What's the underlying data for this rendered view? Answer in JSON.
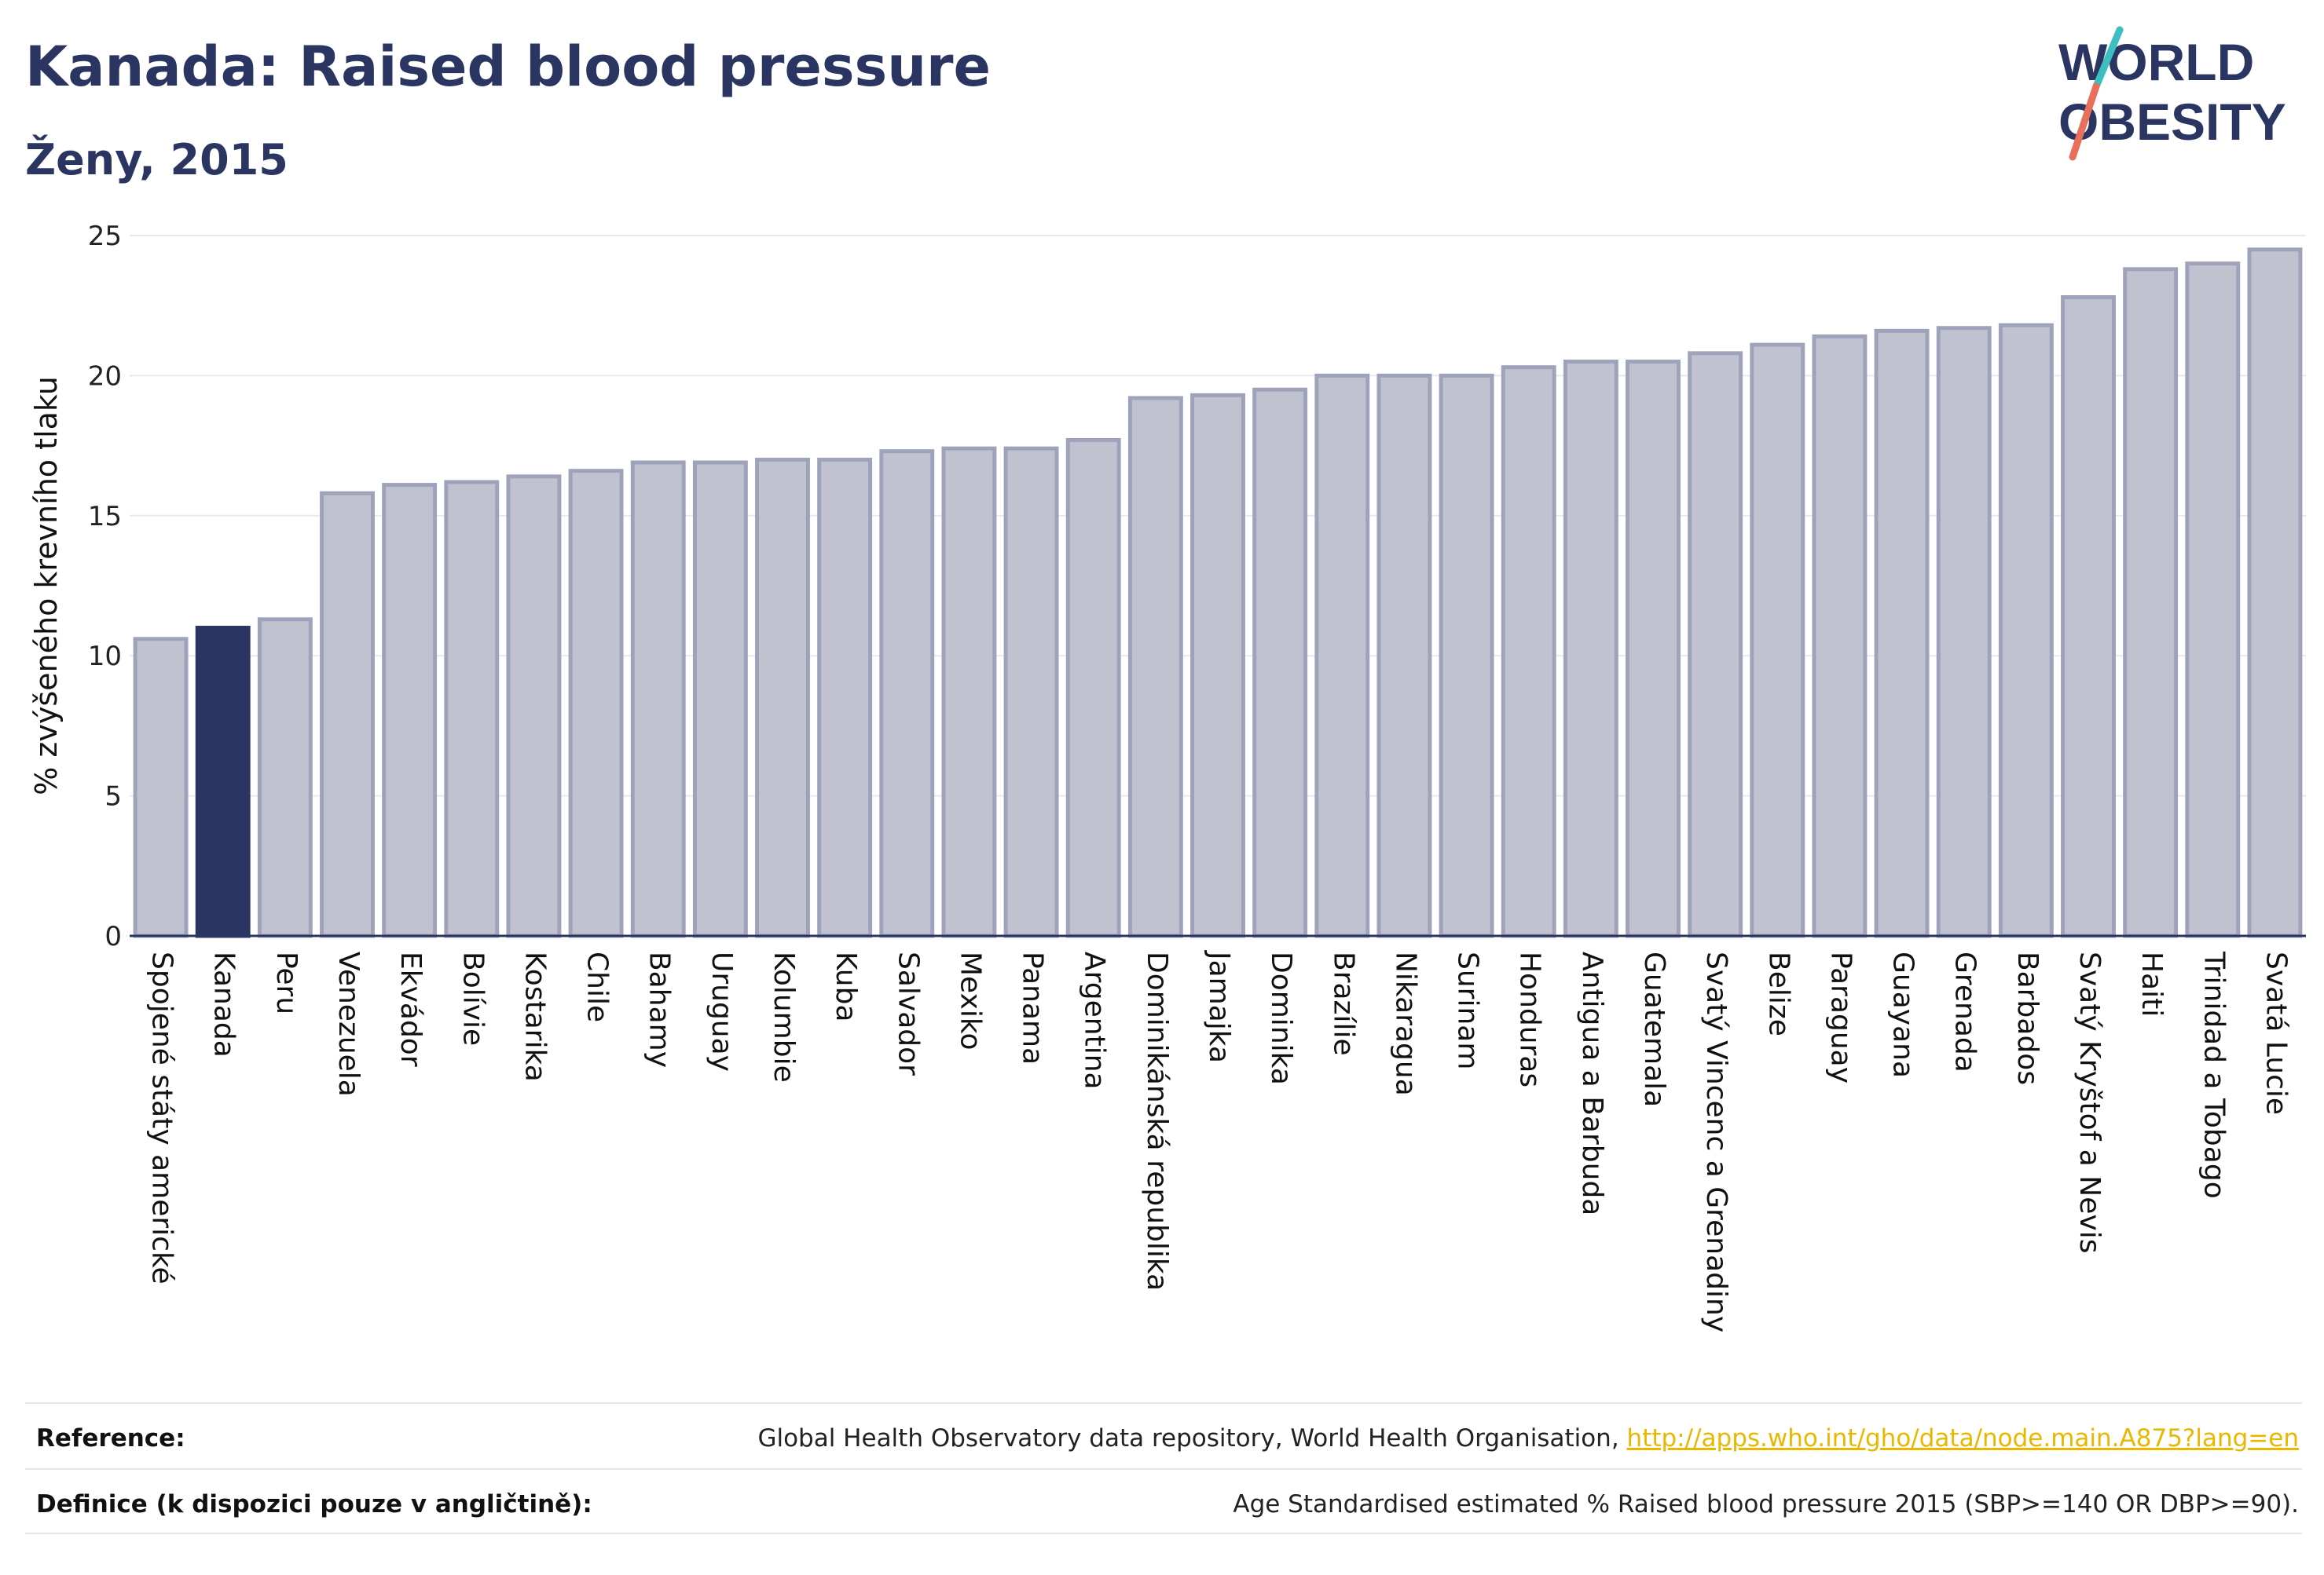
{
  "title": "Kanada: Raised blood pressure",
  "subtitle": "Ženy, 2015",
  "logo": {
    "line1": "WORLD",
    "line2": "OBESITY",
    "accent_teal": "#3bbfbf",
    "accent_red": "#e8705a"
  },
  "colors": {
    "bar": "#c0c3cf",
    "bar_stroke": "#9ea3bb",
    "highlight": "#2b3561",
    "grid": "#e9e9ee",
    "axis": "#2b3561"
  },
  "chart_data": {
    "type": "bar",
    "ylabel": "% zvýšeného krevního tlaku",
    "ylim": [
      0,
      25
    ],
    "yticks": [
      0,
      5,
      10,
      15,
      20,
      25
    ],
    "grid": true,
    "highlight": "Kanada",
    "categories": [
      "Spojené státy americké",
      "Kanada",
      "Peru",
      "Venezuela",
      "Ekvádor",
      "Bolívie",
      "Kostarika",
      "Chile",
      "Bahamy",
      "Uruguay",
      "Kolumbie",
      "Kuba",
      "Salvador",
      "Mexiko",
      "Panama",
      "Argentina",
      "Dominikánská republika",
      "Jamajka",
      "Dominika",
      "Brazílie",
      "Nikaragua",
      "Surinam",
      "Honduras",
      "Antigua a Barbuda",
      "Guatemala",
      "Svatý Vincenc a Grenadiny",
      "Belize",
      "Paraguay",
      "Guayana",
      "Grenada",
      "Barbados",
      "Svatý Kryštof a Nevis",
      "Haiti",
      "Trinidad a Tobago",
      "Svatá Lucie"
    ],
    "values": [
      10.6,
      11.0,
      11.3,
      15.8,
      16.1,
      16.2,
      16.4,
      16.6,
      16.9,
      16.9,
      17.0,
      17.0,
      17.3,
      17.4,
      17.4,
      17.7,
      19.2,
      19.3,
      19.5,
      20.0,
      20.0,
      20.0,
      20.3,
      20.5,
      20.5,
      20.8,
      21.1,
      21.4,
      21.6,
      21.7,
      21.8,
      22.8,
      23.8,
      24.0,
      24.5
    ]
  },
  "footer": {
    "reference_label": "Reference:",
    "reference_text": "Global Health Observatory data repository, World Health Organisation, ",
    "reference_link": "http://apps.who.int/gho/data/node.main.A875?lang=en",
    "definition_label": "Definice (k dispozici pouze v angličtině):",
    "definition_text": "Age Standardised estimated % Raised blood pressure 2015 (SBP>=140 OR DBP>=90)."
  }
}
